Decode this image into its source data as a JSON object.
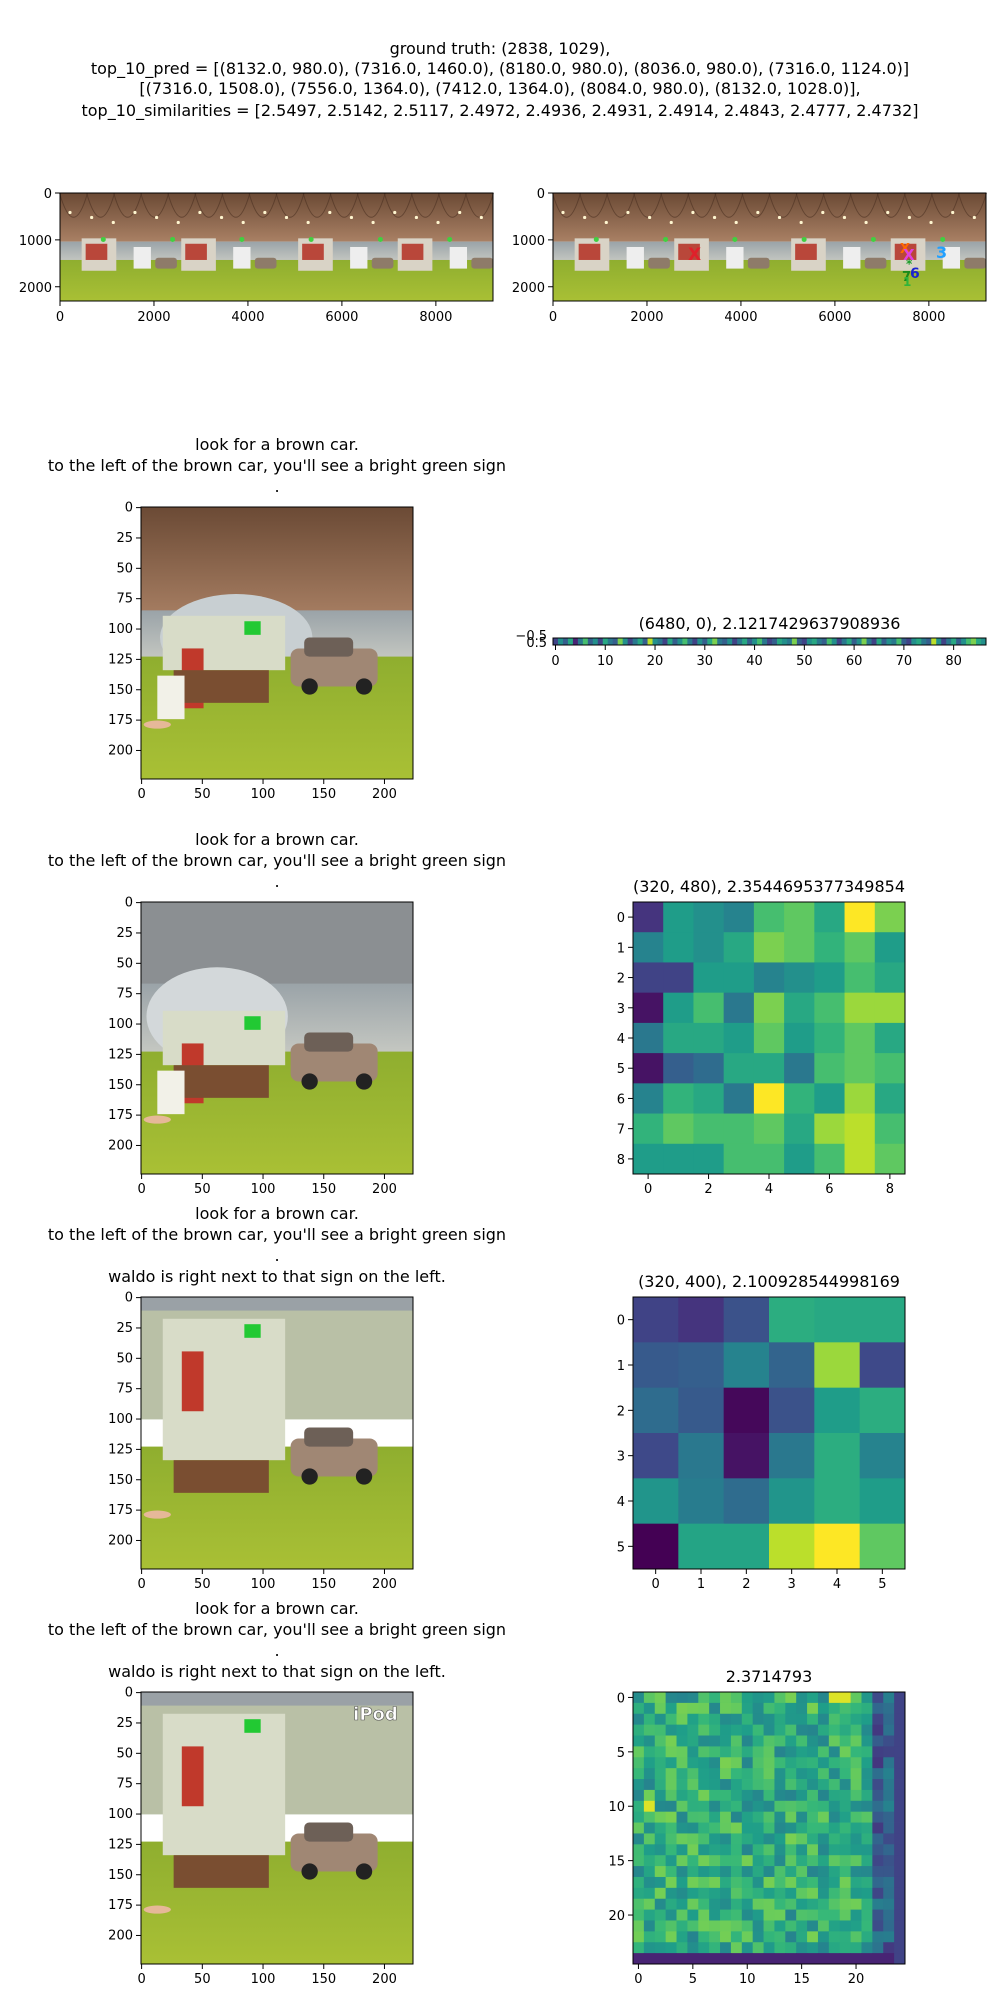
{
  "header": {
    "line1": "ground truth: (2838, 1029),",
    "line2": "top_10_pred = [(8132.0, 980.0), (7316.0, 1460.0), (8180.0, 980.0), (8036.0, 980.0), (7316.0, 1124.0)]",
    "line3": "[(7316.0, 1508.0), (7556.0, 1364.0), (7412.0, 1364.0), (8084.0, 980.0), (8132.0, 1028.0)],",
    "line4": "top_10_similarities = [2.5497, 2.5142, 2.5117, 2.4972, 2.4936, 2.4931, 2.4914, 2.4843, 2.4777, 2.4732]"
  },
  "panorama_left": {
    "xticks": [
      "0",
      "2000",
      "4000",
      "6000",
      "8000"
    ],
    "yticks": [
      "0",
      "1000",
      "2000"
    ]
  },
  "panorama_right": {
    "xticks": [
      "0",
      "2000",
      "4000",
      "6000",
      "8000"
    ],
    "yticks": [
      "0",
      "1000",
      "2000"
    ],
    "ground_truth_marker": "X",
    "pred_labels": [
      "3",
      "6",
      "7",
      "9",
      "10"
    ]
  },
  "rows": [
    {
      "view_title_lines": [
        "look for a brown car.",
        "to the left of the brown car, you'll see a bright green sign",
        "."
      ],
      "view_ticks": [
        "0",
        "25",
        "50",
        "75",
        "100",
        "125",
        "150",
        "175",
        "200"
      ],
      "view_xticks": [
        "0",
        "50",
        "100",
        "150",
        "200"
      ],
      "heat_title": "(6480, 0), 2.1217429637908936",
      "heat_xticks": [
        "0",
        "10",
        "20",
        "30",
        "40",
        "50",
        "60",
        "70",
        "80"
      ],
      "heat_yticks": [
        "−0.5",
        "0.5"
      ]
    },
    {
      "view_title_lines": [
        "look for a brown car.",
        "to the left of the brown car, you'll see a bright green sign",
        "."
      ],
      "view_ticks": [
        "0",
        "25",
        "50",
        "75",
        "100",
        "125",
        "150",
        "175",
        "200"
      ],
      "view_xticks": [
        "0",
        "50",
        "100",
        "150",
        "200"
      ],
      "heat_title": "(320, 480), 2.3544695377349854",
      "heat_xticks": [
        "0",
        "2",
        "4",
        "6",
        "8"
      ],
      "heat_yticks": [
        "0",
        "1",
        "2",
        "3",
        "4",
        "5",
        "6",
        "7",
        "8"
      ]
    },
    {
      "view_title_lines": [
        "look for a brown car.",
        "to the left of the brown car, you'll see a bright green sign",
        ".",
        "waldo is right next to that sign on the left."
      ],
      "view_ticks": [
        "0",
        "25",
        "50",
        "75",
        "100",
        "125",
        "150",
        "175",
        "200"
      ],
      "view_xticks": [
        "0",
        "50",
        "100",
        "150",
        "200"
      ],
      "heat_title": "(320, 400), 2.100928544998169",
      "heat_xticks": [
        "0",
        "1",
        "2",
        "3",
        "4",
        "5"
      ],
      "heat_yticks": [
        "0",
        "1",
        "2",
        "3",
        "4",
        "5"
      ]
    },
    {
      "view_title_lines": [
        "look for a brown car.",
        "to the left of the brown car, you'll see a bright green sign",
        ".",
        "waldo is right next to that sign on the left."
      ],
      "view_ticks": [
        "0",
        "25",
        "50",
        "75",
        "100",
        "125",
        "150",
        "175",
        "200"
      ],
      "view_xticks": [
        "0",
        "50",
        "100",
        "150",
        "200"
      ],
      "view_overlay_text": "iPod",
      "heat_title": "2.3714793",
      "heat_xticks": [
        "0",
        "5",
        "10",
        "15",
        "20"
      ],
      "heat_yticks": [
        "0",
        "5",
        "10",
        "15",
        "20"
      ]
    }
  ],
  "chart_data": [
    {
      "type": "heatmap",
      "title": "(6480, 0), 2.1217429637908936",
      "colormap": "viridis",
      "rows": 1,
      "cols": 87,
      "values": [
        [
          0.2,
          0.5,
          0.3,
          0.6,
          0.1,
          0.4,
          0.7,
          0.3,
          0.5,
          0.2,
          0.6,
          0.4,
          0.3,
          0.8,
          0.5,
          0.2,
          0.4,
          0.6,
          0.3,
          0.9,
          0.5,
          0.4,
          0.2,
          0.6,
          0.3,
          0.5,
          0.7,
          0.4,
          0.2,
          0.5,
          0.3,
          0.6,
          0.8,
          0.4,
          0.3,
          0.5,
          0.2,
          0.4,
          0.6,
          0.3,
          0.5,
          0.7,
          0.4,
          0.2,
          0.3,
          0.6,
          0.5,
          0.4,
          0.8,
          0.3,
          0.2,
          0.5,
          0.6,
          0.4,
          0.3,
          0.7,
          0.5,
          0.2,
          0.4,
          0.6,
          0.3,
          0.5,
          0.8,
          0.4,
          0.2,
          0.6,
          0.3,
          0.5,
          0.4,
          0.7,
          0.3,
          0.2,
          0.5,
          0.6,
          0.4,
          0.3,
          0.9,
          0.5,
          0.2,
          0.4,
          0.6,
          0.3,
          0.5,
          0.7,
          0.8,
          0.6,
          0.5
        ]
      ],
      "x_range": [
        -0.5,
        86.5
      ]
    },
    {
      "type": "heatmap",
      "title": "(320, 480), 2.3544695377349854",
      "colormap": "viridis",
      "rows": 9,
      "cols": 9,
      "values": [
        [
          0.15,
          0.55,
          0.5,
          0.45,
          0.7,
          0.75,
          0.6,
          1.0,
          0.8
        ],
        [
          0.45,
          0.55,
          0.5,
          0.6,
          0.8,
          0.75,
          0.65,
          0.75,
          0.55
        ],
        [
          0.2,
          0.2,
          0.55,
          0.55,
          0.45,
          0.5,
          0.55,
          0.7,
          0.6
        ],
        [
          0.05,
          0.55,
          0.7,
          0.4,
          0.8,
          0.6,
          0.7,
          0.85,
          0.85
        ],
        [
          0.4,
          0.6,
          0.6,
          0.55,
          0.75,
          0.55,
          0.65,
          0.75,
          0.6
        ],
        [
          0.05,
          0.3,
          0.35,
          0.6,
          0.6,
          0.4,
          0.7,
          0.75,
          0.7
        ],
        [
          0.45,
          0.65,
          0.6,
          0.4,
          1.0,
          0.65,
          0.55,
          0.85,
          0.6
        ],
        [
          0.65,
          0.75,
          0.7,
          0.7,
          0.75,
          0.6,
          0.85,
          0.9,
          0.7
        ],
        [
          0.55,
          0.55,
          0.55,
          0.7,
          0.7,
          0.55,
          0.7,
          0.9,
          0.75
        ]
      ]
    },
    {
      "type": "heatmap",
      "title": "(320, 400), 2.100928544998169",
      "colormap": "viridis",
      "rows": 6,
      "cols": 6,
      "values": [
        [
          0.2,
          0.15,
          0.25,
          0.62,
          0.6,
          0.6
        ],
        [
          0.28,
          0.3,
          0.45,
          0.32,
          0.85,
          0.22
        ],
        [
          0.35,
          0.28,
          0.02,
          0.25,
          0.55,
          0.62
        ],
        [
          0.22,
          0.4,
          0.05,
          0.4,
          0.62,
          0.45
        ],
        [
          0.52,
          0.42,
          0.35,
          0.52,
          0.62,
          0.55
        ],
        [
          0.0,
          0.58,
          0.58,
          0.9,
          1.0,
          0.75
        ]
      ]
    },
    {
      "type": "heatmap",
      "title": "2.3714793",
      "colormap": "viridis",
      "rows": 25,
      "cols": 25,
      "values": "generated"
    }
  ]
}
